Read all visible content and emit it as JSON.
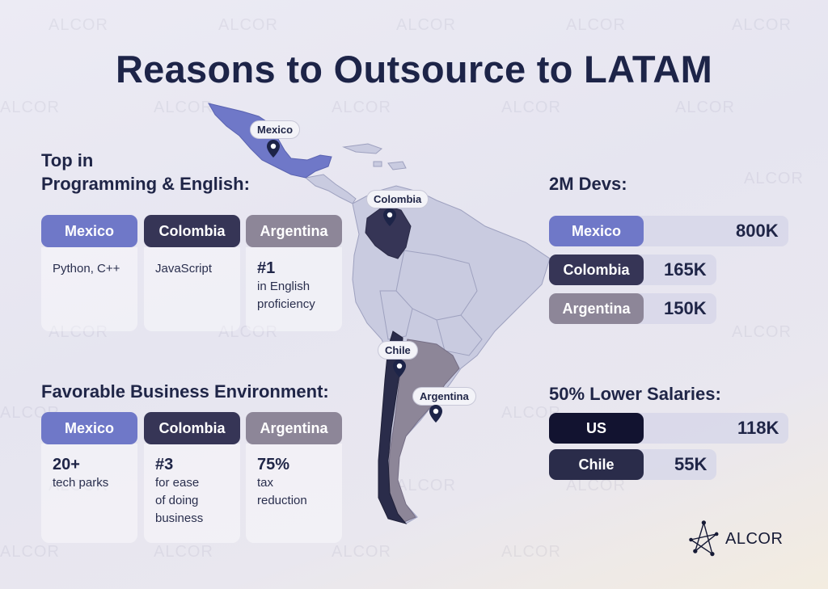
{
  "title": "Reasons to Outsource to LATAM",
  "watermark": "ALCOR",
  "programming": {
    "heading_line1": "Top in",
    "heading_line2": "Programming & English:",
    "columns": [
      {
        "country": "Mexico",
        "text": "Python, C++"
      },
      {
        "country": "Colombia",
        "text": "JavaScript"
      },
      {
        "country": "Argentina",
        "big": "#1",
        "text_lines": [
          "in English",
          "proficiency"
        ]
      }
    ]
  },
  "business": {
    "heading": "Favorable Business Environment:",
    "columns": [
      {
        "country": "Mexico",
        "big": "20+",
        "text_lines": [
          "tech parks"
        ]
      },
      {
        "country": "Colombia",
        "big": "#3",
        "text_lines": [
          "for ease",
          "of doing",
          "business"
        ]
      },
      {
        "country": "Argentina",
        "big": "75%",
        "text_lines": [
          "tax",
          "reduction"
        ]
      }
    ]
  },
  "devs": {
    "heading": "2M Devs:",
    "bars": [
      {
        "label": "Mexico",
        "value": "800K",
        "amount": 800
      },
      {
        "label": "Colombia",
        "value": "165K",
        "amount": 165
      },
      {
        "label": "Argentina",
        "value": "150K",
        "amount": 150
      }
    ]
  },
  "salaries": {
    "heading": "50% Lower Salaries:",
    "bars": [
      {
        "label": "US",
        "value": "118K",
        "amount": 118
      },
      {
        "label": "Chile",
        "value": "55K",
        "amount": 55
      }
    ]
  },
  "map_labels": {
    "mexico": "Mexico",
    "colombia": "Colombia",
    "chile": "Chile",
    "argentina": "Argentina"
  },
  "colors": {
    "mexico": "#6f78c8",
    "colombia": "#363556",
    "argentina": "#8d8698",
    "us": "#121330",
    "chile": "#2a2c4a",
    "map_land": "#c9cbe0"
  },
  "logo": {
    "text": "ALCOR",
    "icon": "alcor-star-logo-icon"
  }
}
